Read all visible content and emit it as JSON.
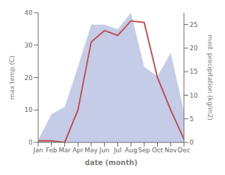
{
  "chart_data": {
    "type": "line",
    "xlabel": "date (month)",
    "ylabel": "max temp (C)",
    "y2label": "med. precipitation (kg/m2)",
    "categories": [
      "Jan",
      "Feb",
      "Mar",
      "Apr",
      "May",
      "Jun",
      "Jul",
      "Aug",
      "Sep",
      "Oct",
      "Nov",
      "Dec"
    ],
    "series": [
      {
        "type": "area",
        "axis": "y2",
        "color": "#c5cce8",
        "values": [
          0.5,
          6.0,
          7.5,
          16.0,
          25.0,
          25.0,
          24.0,
          27.5,
          16.0,
          14.0,
          19.0,
          6.5
        ]
      },
      {
        "type": "line",
        "color": "#c0504d",
        "values": [
          0.5,
          0.5,
          0.0,
          10.0,
          31.0,
          34.5,
          33.0,
          37.5,
          37.0,
          20.0,
          10.0,
          1.0
        ]
      }
    ],
    "ylim": [
      0,
      40
    ],
    "yticks": [
      0,
      10,
      20,
      30,
      40
    ],
    "y2lim": [
      0,
      27.5
    ],
    "y2ticks": [
      0,
      5,
      10,
      15,
      20,
      25
    ],
    "grid": false
  }
}
